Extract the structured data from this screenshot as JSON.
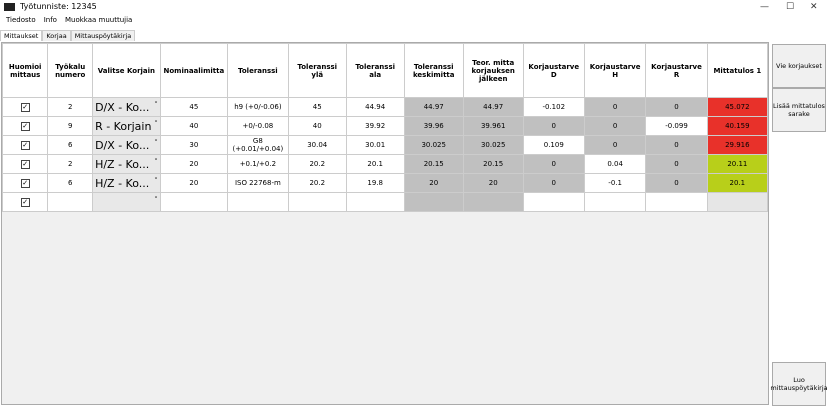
{
  "window": {
    "title": "Työtunniste: 12345"
  },
  "menu": [
    "Tiedosto",
    "Info",
    "Muokkaa muuttujia"
  ],
  "tabs": [
    "Mittaukset",
    "Korjaa",
    "Mittauspöytäkirja"
  ],
  "table": {
    "headers": [
      "Huomioi mittaus",
      "Työkalu numero",
      "Valitse Korjain",
      "Nominaalimitta",
      "Toleranssi",
      "Toleranssi ylä",
      "Toleranssi ala",
      "Toleranssi keskimitta",
      "Teor. mitta korjauksen jälkeen",
      "Korjaustarve D",
      "Korjaustarve H",
      "Korjaustarve R",
      "Mittatulos 1"
    ],
    "rows": [
      [
        "2",
        "D/X - Ko...",
        "45",
        "h9 (+0/-0.06)",
        "45",
        "44.94",
        "44.97",
        "44.97",
        "-0.102",
        "0",
        "0",
        "45.072"
      ],
      [
        "9",
        "R - Korjain",
        "40",
        "+0/-0.08",
        "40",
        "39.92",
        "39.96",
        "39.961",
        "0",
        "0",
        "-0.099",
        "40.159"
      ],
      [
        "6",
        "D/X - Ko...",
        "30",
        "G8 (+0.01/+0.04)",
        "30.04",
        "30.01",
        "30.025",
        "30.025",
        "0.109",
        "0",
        "0",
        "29.916"
      ],
      [
        "2",
        "H/Z - Ko...",
        "20",
        "+0.1/+0.2",
        "20.2",
        "20.1",
        "20.15",
        "20.15",
        "0",
        "0.04",
        "0",
        "20.11"
      ],
      [
        "6",
        "H/Z - Ko...",
        "20",
        "ISO 22768-m",
        "20.2",
        "19.8",
        "20",
        "20",
        "0",
        "-0.1",
        "0",
        "20.1"
      ]
    ]
  },
  "buttons": [
    "Vie korjaukset",
    "Lisää mittatulos sarake",
    "Luo mittauspöytäkirja"
  ]
}
